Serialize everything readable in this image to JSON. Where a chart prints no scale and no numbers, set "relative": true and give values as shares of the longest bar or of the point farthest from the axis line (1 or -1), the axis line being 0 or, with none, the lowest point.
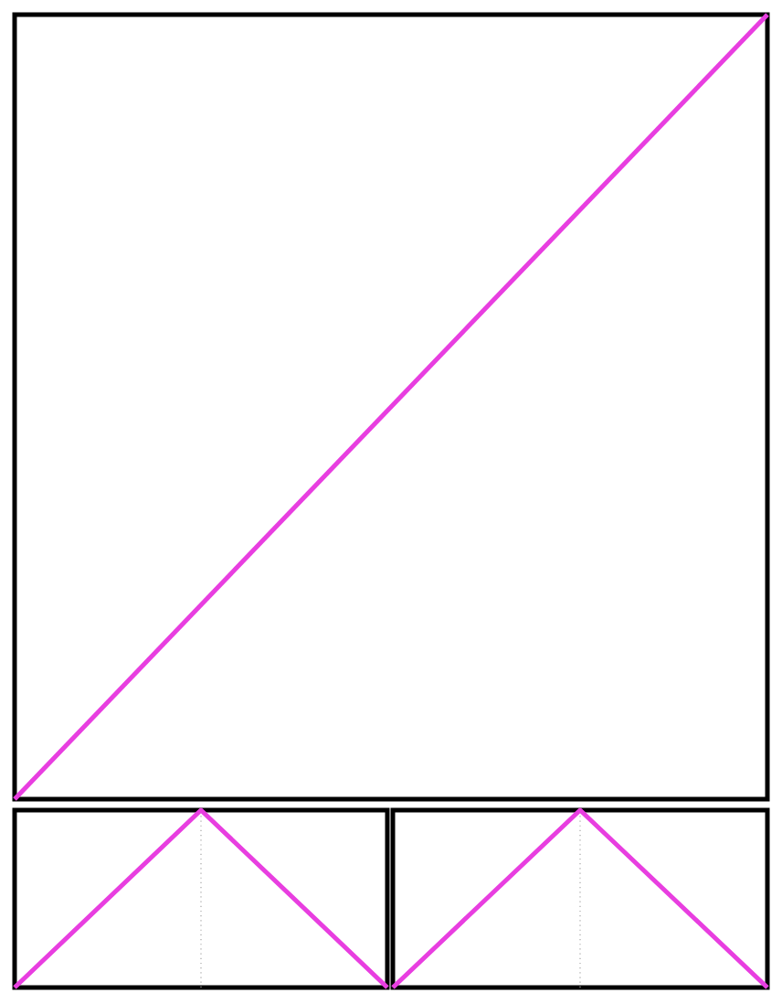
{
  "chart_data": [
    {
      "type": "line",
      "relative": true,
      "categories": [
        null,
        null
      ],
      "color": "#e83ee0",
      "values": [
        0,
        1
      ]
    },
    {
      "type": "line",
      "relative": true,
      "categories": [
        null,
        null,
        null
      ],
      "color": "#e83ee0",
      "values": [
        0,
        1,
        0
      ]
    },
    {
      "type": "line",
      "relative": true,
      "categories": [
        null,
        null,
        null
      ],
      "color": "#e83ee0",
      "values": [
        0,
        1,
        0
      ]
    }
  ]
}
